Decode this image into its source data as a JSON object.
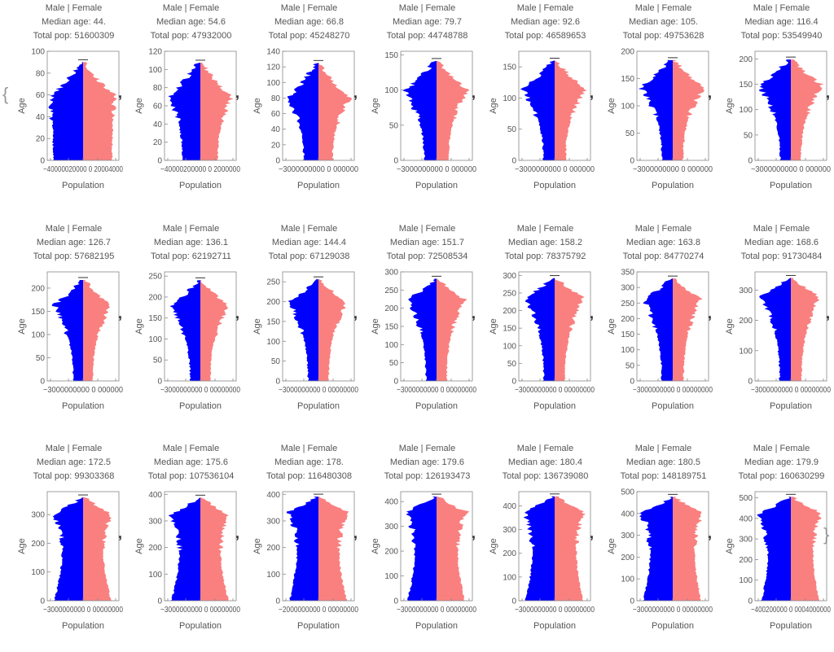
{
  "list": {
    "open_brace": "{",
    "close_brace": "}",
    "separator": ","
  },
  "chart_data": [
    {
      "type": "area",
      "title_line1": "Male | Female",
      "median_label": "Median age: 44.",
      "pop_label": "Total pop: 51600309",
      "xlabel": "Population",
      "ylabel": "Age",
      "yticks": [
        0,
        20,
        40,
        60,
        80,
        100
      ],
      "ymax": 100,
      "xtick_labels": "−40000020000 0 20004000",
      "peak_age": 60,
      "neck_frac": 0.92,
      "male_color": "#0000ff",
      "female_color": "#fa8080"
    },
    {
      "type": "area",
      "title_line1": "Male | Female",
      "median_label": "Median age: 54.6",
      "pop_label": "Total pop: 47932000",
      "xlabel": "Population",
      "ylabel": "Age",
      "yticks": [
        0,
        20,
        40,
        60,
        80,
        100,
        120
      ],
      "ymax": 120,
      "xtick_labels": "−40000200000 0 2000000",
      "peak_age": 70,
      "neck_frac": 0.55,
      "male_color": "#0000ff",
      "female_color": "#fa8080"
    },
    {
      "type": "area",
      "title_line1": "Male | Female",
      "median_label": "Median age: 66.8",
      "pop_label": "Total pop: 45248270",
      "xlabel": "Population",
      "ylabel": "Age",
      "yticks": [
        0,
        20,
        40,
        60,
        80,
        100,
        120,
        140
      ],
      "ymax": 140,
      "xtick_labels": "−3000000000 0 000000",
      "peak_age": 80,
      "neck_frac": 0.45,
      "male_color": "#0000ff",
      "female_color": "#fa8080"
    },
    {
      "type": "area",
      "title_line1": "Male | Female",
      "median_label": "Median age: 79.7",
      "pop_label": "Total pop: 44748788",
      "xlabel": "Population",
      "ylabel": "Age",
      "yticks": [
        0,
        50,
        100,
        150
      ],
      "ymax": 155,
      "xtick_labels": "−3000000000 0 000000",
      "peak_age": 100,
      "neck_frac": 0.38,
      "male_color": "#0000ff",
      "female_color": "#fa8080"
    },
    {
      "type": "area",
      "title_line1": "Male | Female",
      "median_label": "Median age: 92.6",
      "pop_label": "Total pop: 46589653",
      "xlabel": "Population",
      "ylabel": "Age",
      "yticks": [
        0,
        50,
        100,
        150
      ],
      "ymax": 175,
      "xtick_labels": "−3000000000 0 000000",
      "peak_age": 115,
      "neck_frac": 0.35,
      "male_color": "#0000ff",
      "female_color": "#fa8080"
    },
    {
      "type": "area",
      "title_line1": "Male | Female",
      "median_label": "Median age: 105.",
      "pop_label": "Total pop: 49753628",
      "xlabel": "Population",
      "ylabel": "Age",
      "yticks": [
        0,
        50,
        100,
        150,
        200
      ],
      "ymax": 200,
      "xtick_labels": "−3000000000 0 000000",
      "peak_age": 135,
      "neck_frac": 0.33,
      "male_color": "#0000ff",
      "female_color": "#fa8080"
    },
    {
      "type": "area",
      "title_line1": "Male | Female",
      "median_label": "Median age: 116.4",
      "pop_label": "Total pop: 53549940",
      "xlabel": "Population",
      "ylabel": "Age",
      "yticks": [
        0,
        50,
        100,
        150,
        200
      ],
      "ymax": 215,
      "xtick_labels": "−3000000000 0 000000",
      "peak_age": 150,
      "neck_frac": 0.32,
      "male_color": "#0000ff",
      "female_color": "#fa8080"
    },
    {
      "type": "area",
      "title_line1": "Male | Female",
      "median_label": "Median age: 126.7",
      "pop_label": "Total pop: 57682195",
      "xlabel": "Population",
      "ylabel": "Age",
      "yticks": [
        0,
        50,
        100,
        150,
        200
      ],
      "ymax": 235,
      "xtick_labels": "−3000000000 0 000000",
      "peak_age": 165,
      "neck_frac": 0.34,
      "male_color": "#0000ff",
      "female_color": "#fa8080"
    },
    {
      "type": "area",
      "title_line1": "Male | Female",
      "median_label": "Median age: 136.1",
      "pop_label": "Total pop: 62192711",
      "xlabel": "Population",
      "ylabel": "Age",
      "yticks": [
        0,
        50,
        100,
        150,
        200,
        250
      ],
      "ymax": 260,
      "xtick_labels": "−3000000000 0 00000000",
      "peak_age": 180,
      "neck_frac": 0.35,
      "male_color": "#0000ff",
      "female_color": "#fa8080"
    },
    {
      "type": "area",
      "title_line1": "Male | Female",
      "median_label": "Median age: 144.4",
      "pop_label": "Total pop: 67129038",
      "xlabel": "Population",
      "ylabel": "Age",
      "yticks": [
        0,
        50,
        100,
        150,
        200,
        250
      ],
      "ymax": 275,
      "xtick_labels": "−3000000000 0 00000000",
      "peak_age": 200,
      "neck_frac": 0.36,
      "male_color": "#0000ff",
      "female_color": "#fa8080"
    },
    {
      "type": "area",
      "title_line1": "Male | Female",
      "median_label": "Median age: 151.7",
      "pop_label": "Total pop: 72508534",
      "xlabel": "Population",
      "ylabel": "Age",
      "yticks": [
        0,
        50,
        100,
        150,
        200,
        250,
        300
      ],
      "ymax": 300,
      "xtick_labels": "−3000000000 0 00000000",
      "peak_age": 225,
      "neck_frac": 0.36,
      "male_color": "#0000ff",
      "female_color": "#fa8080"
    },
    {
      "type": "area",
      "title_line1": "Male | Female",
      "median_label": "Median age: 158.2",
      "pop_label": "Total pop: 78375792",
      "xlabel": "Population",
      "ylabel": "Age",
      "yticks": [
        0,
        50,
        100,
        150,
        200,
        250,
        300
      ],
      "ymax": 310,
      "xtick_labels": "−3000000000 0 00000000",
      "peak_age": 240,
      "neck_frac": 0.37,
      "male_color": "#0000ff",
      "female_color": "#fa8080"
    },
    {
      "type": "area",
      "title_line1": "Male | Female",
      "median_label": "Median age: 163.8",
      "pop_label": "Total pop: 84770274",
      "xlabel": "Population",
      "ylabel": "Age",
      "yticks": [
        0,
        50,
        100,
        150,
        200,
        250,
        300,
        350
      ],
      "ymax": 350,
      "xtick_labels": "−3000000000 0 00000000",
      "peak_age": 265,
      "neck_frac": 0.38,
      "male_color": "#0000ff",
      "female_color": "#fa8080"
    },
    {
      "type": "area",
      "title_line1": "Male | Female",
      "median_label": "Median age: 168.6",
      "pop_label": "Total pop: 91730484",
      "xlabel": "Population",
      "ylabel": "Age",
      "yticks": [
        0,
        100,
        200,
        300
      ],
      "ymax": 360,
      "xtick_labels": "−3000000000 0 00000000",
      "peak_age": 280,
      "neck_frac": 0.38,
      "male_color": "#0000ff",
      "female_color": "#fa8080"
    },
    {
      "type": "area",
      "title_line1": "Male | Female",
      "median_label": "Median age: 172.5",
      "pop_label": "Total pop: 99303368",
      "xlabel": "Population",
      "ylabel": "Age",
      "yticks": [
        0,
        100,
        200,
        300
      ],
      "ymax": 380,
      "xtick_labels": "−3000000000 0 00000000",
      "peak_age": 300,
      "neck_frac": 0.35,
      "male_color": "#0000ff",
      "female_color": "#fa8080"
    },
    {
      "type": "area",
      "title_line1": "Male | Female",
      "median_label": "Median age: 175.6",
      "pop_label": "Total pop: 107536104",
      "xlabel": "Population",
      "ylabel": "Age",
      "yticks": [
        0,
        100,
        200,
        300,
        400
      ],
      "ymax": 410,
      "xtick_labels": "−3000000000 0 00000000",
      "peak_age": 320,
      "neck_frac": 0.36,
      "male_color": "#0000ff",
      "female_color": "#fa8080"
    },
    {
      "type": "area",
      "title_line1": "Male | Female",
      "median_label": "Median age: 178.",
      "pop_label": "Total pop: 116480308",
      "xlabel": "Population",
      "ylabel": "Age",
      "yticks": [
        0,
        100,
        200,
        300,
        400
      ],
      "ymax": 410,
      "xtick_labels": "−2000000000 0 00000000",
      "peak_age": 335,
      "neck_frac": 0.38,
      "male_color": "#0000ff",
      "female_color": "#fa8080"
    },
    {
      "type": "area",
      "title_line1": "Male | Female",
      "median_label": "Median age: 179.6",
      "pop_label": "Total pop: 126193473",
      "xlabel": "Population",
      "ylabel": "Age",
      "yticks": [
        0,
        100,
        200,
        300,
        400
      ],
      "ymax": 440,
      "xtick_labels": "−3000000000 0 00000000",
      "peak_age": 360,
      "neck_frac": 0.4,
      "male_color": "#0000ff",
      "female_color": "#fa8080"
    },
    {
      "type": "area",
      "title_line1": "Male | Female",
      "median_label": "Median age: 180.4",
      "pop_label": "Total pop: 136739080",
      "xlabel": "Population",
      "ylabel": "Age",
      "yticks": [
        0,
        100,
        200,
        300,
        400
      ],
      "ymax": 460,
      "xtick_labels": "−3000000000 0 00000000",
      "peak_age": 380,
      "neck_frac": 0.42,
      "male_color": "#0000ff",
      "female_color": "#fa8080"
    },
    {
      "type": "area",
      "title_line1": "Male | Female",
      "median_label": "Median age: 180.5",
      "pop_label": "Total pop: 148189751",
      "xlabel": "Population",
      "ylabel": "Age",
      "yticks": [
        0,
        100,
        200,
        300,
        400,
        500
      ],
      "ymax": 500,
      "xtick_labels": "−3000000000 0 00000000",
      "peak_age": 405,
      "neck_frac": 0.44,
      "male_color": "#0000ff",
      "female_color": "#fa8080"
    },
    {
      "type": "area",
      "title_line1": "Male | Female",
      "median_label": "Median age: 179.9",
      "pop_label": "Total pop: 160630299",
      "xlabel": "Population",
      "ylabel": "Age",
      "yticks": [
        0,
        100,
        200,
        300,
        400,
        500
      ],
      "ymax": 530,
      "xtick_labels": "−400200000 0 0004000000",
      "peak_age": 430,
      "neck_frac": 0.46,
      "male_color": "#0000ff",
      "female_color": "#fa8080"
    }
  ]
}
